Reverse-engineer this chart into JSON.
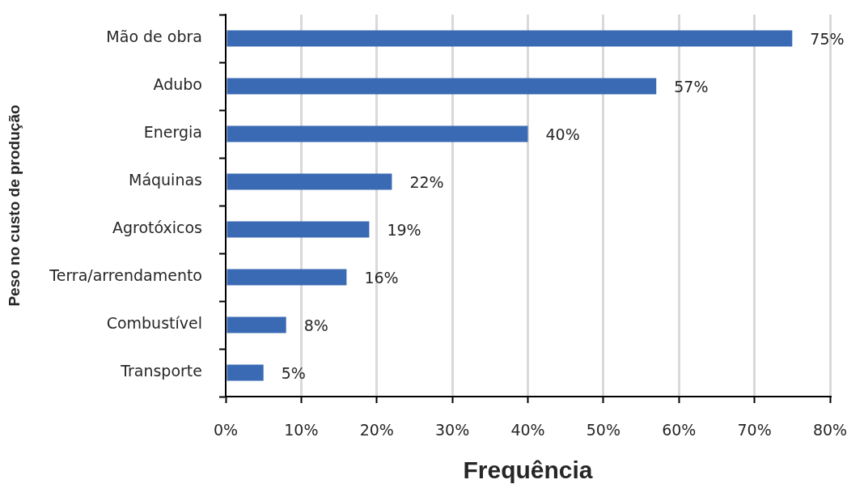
{
  "chart_data": {
    "type": "bar",
    "orientation": "horizontal",
    "xlabel": "Frequência",
    "ylabel": "Peso no custo de produção",
    "categories": [
      "Mão de obra",
      "Adubo",
      "Energia",
      "Máquinas",
      "Agrotóxicos",
      "Terra/arrendamento",
      "Combustível",
      "Transporte"
    ],
    "values": [
      75,
      57,
      40,
      22,
      19,
      16,
      8,
      5
    ],
    "value_labels": [
      "75%",
      "57%",
      "40%",
      "22%",
      "19%",
      "16%",
      "8%",
      "5%"
    ],
    "color": "#3a6ab4",
    "xlim": [
      0,
      80
    ],
    "xticks": [
      {
        "value": 0,
        "label": "0%"
      },
      {
        "value": 10,
        "label": "10%"
      },
      {
        "value": 20,
        "label": "20%"
      },
      {
        "value": 30,
        "label": "30%"
      },
      {
        "value": 40,
        "label": "40%"
      },
      {
        "value": 50,
        "label": "50%"
      },
      {
        "value": 60,
        "label": "60%"
      },
      {
        "value": 70,
        "label": "70%"
      },
      {
        "value": 80,
        "label": "80%"
      }
    ],
    "grid": "x"
  }
}
